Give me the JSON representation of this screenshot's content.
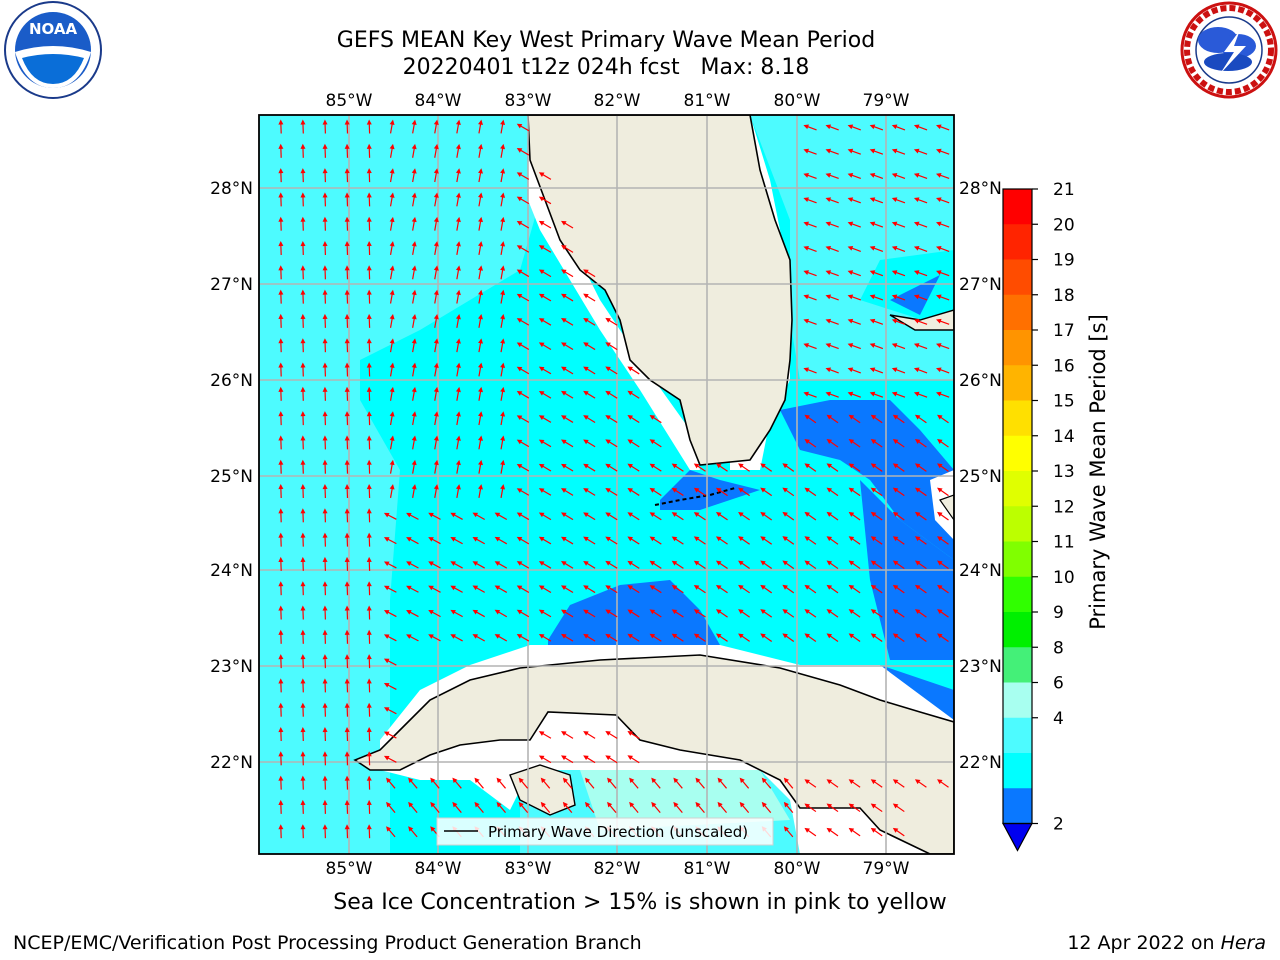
{
  "header": {
    "title_line1": "GEFS MEAN Key West Primary Wave Mean Period",
    "title_line2": "20220401 t12z 024h fcst   Max: 8.18"
  },
  "logos": {
    "left": {
      "icon": "noaa-logo",
      "text": "NOAA"
    },
    "right": {
      "icon": "nws-logo"
    }
  },
  "map": {
    "lon_labels": [
      "85°W",
      "84°W",
      "83°W",
      "82°W",
      "81°W",
      "80°W",
      "79°W"
    ],
    "lat_labels": [
      "28°N",
      "27°N",
      "26°N",
      "25°N",
      "24°N",
      "23°N",
      "22°N"
    ],
    "legend_label": "Primary Wave Direction (unscaled)",
    "colors": {
      "land": "#efedde",
      "light_cyan": "#4dfbff",
      "cyan": "#00ffff",
      "blue": "#0a78ff",
      "dark_blue": "#0000f0",
      "arrow": "#ff0000",
      "grid": "#b4b4b4"
    }
  },
  "colorbar": {
    "label": "Primary Wave Mean Period [s]",
    "ticks": [
      "21",
      "20",
      "19",
      "18",
      "17",
      "16",
      "15",
      "14",
      "13",
      "12",
      "11",
      "10",
      "9",
      "8",
      "6",
      "4",
      "2"
    ],
    "colors": [
      "#ff0000",
      "#ff2400",
      "#ff4c00",
      "#ff7000",
      "#ff9400",
      "#ffb400",
      "#ffe000",
      "#ffff00",
      "#e0ff00",
      "#bcff00",
      "#80ff00",
      "#30ff00",
      "#00f000",
      "#44f078",
      "#a8fff0",
      "#4dfbff",
      "#00ffff",
      "#0a78ff"
    ],
    "extend_color": "#0000f0"
  },
  "footer": {
    "caption": "Sea Ice Concentration > 15% is shown in pink to yellow",
    "credit": "NCEP/EMC/Verification Post Processing Product Generation Branch",
    "date": "12 Apr 2022 on ",
    "host": "Hera"
  }
}
